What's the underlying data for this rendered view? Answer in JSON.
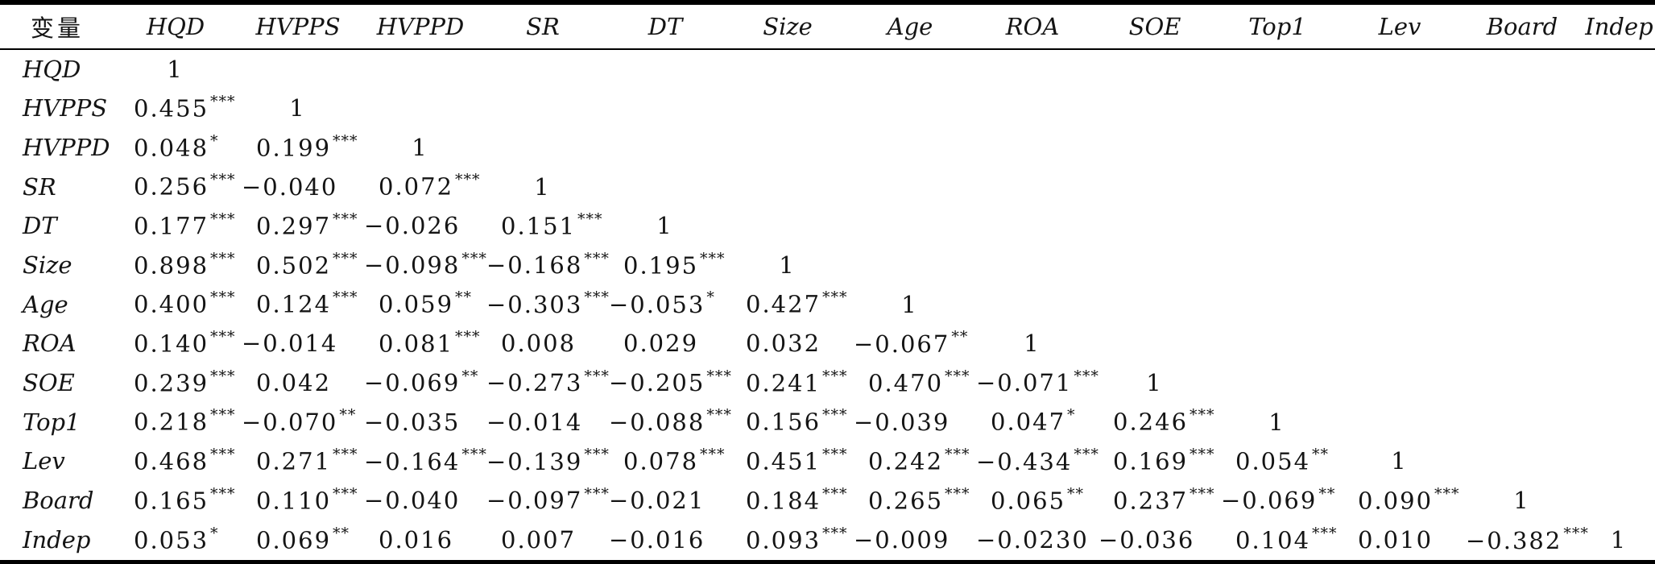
{
  "table": {
    "header": [
      "变量",
      "HQD",
      "HVPPS",
      "HVPPD",
      "SR",
      "DT",
      "Size",
      "Age",
      "ROA",
      "SOE",
      "Top1",
      "Lev",
      "Board",
      "Indep"
    ],
    "rows": [
      {
        "label": "HQD",
        "cells": [
          {
            "v": "1",
            "sig": ""
          }
        ]
      },
      {
        "label": "HVPPS",
        "cells": [
          {
            "v": "0.455",
            "sig": "***"
          },
          {
            "v": "1",
            "sig": ""
          }
        ]
      },
      {
        "label": "HVPPD",
        "cells": [
          {
            "v": "0.048",
            "sig": "*"
          },
          {
            "v": "0.199",
            "sig": "***"
          },
          {
            "v": "1",
            "sig": ""
          }
        ]
      },
      {
        "label": "SR",
        "cells": [
          {
            "v": "0.256",
            "sig": "***"
          },
          {
            "v": "−0.040",
            "sig": ""
          },
          {
            "v": "0.072",
            "sig": "***"
          },
          {
            "v": "1",
            "sig": ""
          }
        ]
      },
      {
        "label": "DT",
        "cells": [
          {
            "v": "0.177",
            "sig": "***"
          },
          {
            "v": "0.297",
            "sig": "***"
          },
          {
            "v": "−0.026",
            "sig": ""
          },
          {
            "v": "0.151",
            "sig": "***"
          },
          {
            "v": "1",
            "sig": ""
          }
        ]
      },
      {
        "label": "Size",
        "cells": [
          {
            "v": "0.898",
            "sig": "***"
          },
          {
            "v": "0.502",
            "sig": "***"
          },
          {
            "v": "−0.098",
            "sig": "***"
          },
          {
            "v": "−0.168",
            "sig": "***"
          },
          {
            "v": "0.195",
            "sig": "***"
          },
          {
            "v": "1",
            "sig": ""
          }
        ]
      },
      {
        "label": "Age",
        "cells": [
          {
            "v": "0.400",
            "sig": "***"
          },
          {
            "v": "0.124",
            "sig": "***"
          },
          {
            "v": "0.059",
            "sig": "**"
          },
          {
            "v": "−0.303",
            "sig": "***"
          },
          {
            "v": "−0.053",
            "sig": "*"
          },
          {
            "v": "0.427",
            "sig": "***"
          },
          {
            "v": "1",
            "sig": ""
          }
        ]
      },
      {
        "label": "ROA",
        "cells": [
          {
            "v": "0.140",
            "sig": "***"
          },
          {
            "v": "−0.014",
            "sig": ""
          },
          {
            "v": "0.081",
            "sig": "***"
          },
          {
            "v": "0.008",
            "sig": ""
          },
          {
            "v": "0.029",
            "sig": ""
          },
          {
            "v": "0.032",
            "sig": ""
          },
          {
            "v": "−0.067",
            "sig": "**"
          },
          {
            "v": "1",
            "sig": ""
          }
        ]
      },
      {
        "label": "SOE",
        "cells": [
          {
            "v": "0.239",
            "sig": "***"
          },
          {
            "v": "0.042",
            "sig": ""
          },
          {
            "v": "−0.069",
            "sig": "**"
          },
          {
            "v": "−0.273",
            "sig": "***"
          },
          {
            "v": "−0.205",
            "sig": "***"
          },
          {
            "v": "0.241",
            "sig": "***"
          },
          {
            "v": "0.470",
            "sig": "***"
          },
          {
            "v": "−0.071",
            "sig": "***"
          },
          {
            "v": "1",
            "sig": ""
          }
        ]
      },
      {
        "label": "Top1",
        "cells": [
          {
            "v": "0.218",
            "sig": "***"
          },
          {
            "v": "−0.070",
            "sig": "**"
          },
          {
            "v": "−0.035",
            "sig": ""
          },
          {
            "v": "−0.014",
            "sig": ""
          },
          {
            "v": "−0.088",
            "sig": "***"
          },
          {
            "v": "0.156",
            "sig": "***"
          },
          {
            "v": "−0.039",
            "sig": ""
          },
          {
            "v": "0.047",
            "sig": "*"
          },
          {
            "v": "0.246",
            "sig": "***"
          },
          {
            "v": "1",
            "sig": ""
          }
        ]
      },
      {
        "label": "Lev",
        "cells": [
          {
            "v": "0.468",
            "sig": "***"
          },
          {
            "v": "0.271",
            "sig": "***"
          },
          {
            "v": "−0.164",
            "sig": "***"
          },
          {
            "v": "−0.139",
            "sig": "***"
          },
          {
            "v": "0.078",
            "sig": "***"
          },
          {
            "v": "0.451",
            "sig": "***"
          },
          {
            "v": "0.242",
            "sig": "***"
          },
          {
            "v": "−0.434",
            "sig": "***"
          },
          {
            "v": "0.169",
            "sig": "***"
          },
          {
            "v": "0.054",
            "sig": "**"
          },
          {
            "v": "1",
            "sig": ""
          }
        ]
      },
      {
        "label": "Board",
        "cells": [
          {
            "v": "0.165",
            "sig": "***"
          },
          {
            "v": "0.110",
            "sig": "***"
          },
          {
            "v": "−0.040",
            "sig": ""
          },
          {
            "v": "−0.097",
            "sig": "***"
          },
          {
            "v": "−0.021",
            "sig": ""
          },
          {
            "v": "0.184",
            "sig": "***"
          },
          {
            "v": "0.265",
            "sig": "***"
          },
          {
            "v": "0.065",
            "sig": "**"
          },
          {
            "v": "0.237",
            "sig": "***"
          },
          {
            "v": "−0.069",
            "sig": "**"
          },
          {
            "v": "0.090",
            "sig": "***"
          },
          {
            "v": "1",
            "sig": ""
          }
        ]
      },
      {
        "label": "Indep",
        "cells": [
          {
            "v": "0.053",
            "sig": "*"
          },
          {
            "v": "0.069",
            "sig": "**"
          },
          {
            "v": "0.016",
            "sig": ""
          },
          {
            "v": "0.007",
            "sig": ""
          },
          {
            "v": "−0.016",
            "sig": ""
          },
          {
            "v": "0.093",
            "sig": "***"
          },
          {
            "v": "−0.009",
            "sig": ""
          },
          {
            "v": "−0.0230",
            "sig": ""
          },
          {
            "v": "−0.036",
            "sig": ""
          },
          {
            "v": "0.104",
            "sig": "***"
          },
          {
            "v": "0.010",
            "sig": ""
          },
          {
            "v": "−0.382",
            "sig": "***"
          },
          {
            "v": "1",
            "sig": ""
          }
        ]
      }
    ]
  }
}
